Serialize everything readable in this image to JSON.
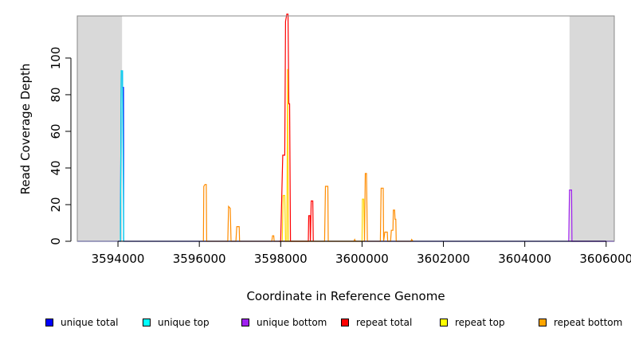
{
  "chart_data": {
    "type": "line",
    "xlabel": "Coordinate in Reference Genome",
    "ylabel": "Read Coverage Depth",
    "xlim": [
      3593000,
      3606200
    ],
    "ylim": [
      0,
      123
    ],
    "x_ticks": [
      3594000,
      3596000,
      3598000,
      3600000,
      3602000,
      3604000,
      3606000
    ],
    "y_ticks": [
      0,
      20,
      40,
      60,
      80,
      100
    ],
    "shaded_regions": [
      [
        3593000,
        3594100
      ],
      [
        3605100,
        3606200
      ]
    ],
    "series": [
      {
        "name": "unique total",
        "color": "#0000ff",
        "points": [
          [
            3593000,
            0
          ],
          [
            3594060,
            0
          ],
          [
            3594080,
            93
          ],
          [
            3594110,
            93
          ],
          [
            3594115,
            84
          ],
          [
            3594135,
            84
          ],
          [
            3594140,
            0
          ],
          [
            3606200,
            0
          ]
        ]
      },
      {
        "name": "unique top",
        "color": "#00e5ee",
        "points": [
          [
            3594060,
            0
          ],
          [
            3594080,
            93
          ],
          [
            3594110,
            93
          ],
          [
            3594140,
            0
          ]
        ]
      },
      {
        "name": "unique bottom",
        "color": "#a020f0",
        "points": [
          [
            3605080,
            0
          ],
          [
            3605100,
            28
          ],
          [
            3605150,
            28
          ],
          [
            3605160,
            0
          ],
          [
            3606200,
            0
          ]
        ]
      },
      {
        "name": "repeat total",
        "color": "#ff0000",
        "points": [
          [
            3597950,
            0
          ],
          [
            3598000,
            0
          ],
          [
            3598050,
            47
          ],
          [
            3598100,
            47
          ],
          [
            3598120,
            120
          ],
          [
            3598150,
            124
          ],
          [
            3598180,
            124
          ],
          [
            3598200,
            75
          ],
          [
            3598220,
            75
          ],
          [
            3598240,
            0
          ],
          [
            3598680,
            0
          ],
          [
            3598690,
            14
          ],
          [
            3598720,
            14
          ],
          [
            3598730,
            0
          ],
          [
            3598750,
            22
          ],
          [
            3598790,
            22
          ],
          [
            3598800,
            0
          ]
        ]
      },
      {
        "name": "repeat top",
        "color": "#ffd700",
        "points": [
          [
            3598040,
            0
          ],
          [
            3598060,
            25
          ],
          [
            3598100,
            25
          ],
          [
            3598120,
            0
          ],
          [
            3598150,
            0
          ],
          [
            3598170,
            94
          ],
          [
            3598190,
            0
          ],
          [
            3600000,
            0
          ],
          [
            3600010,
            23
          ],
          [
            3600040,
            23
          ],
          [
            3600060,
            0
          ]
        ]
      },
      {
        "name": "repeat bottom",
        "color": "#ff8c00",
        "points": [
          [
            3596100,
            0
          ],
          [
            3596110,
            30
          ],
          [
            3596140,
            31
          ],
          [
            3596170,
            31
          ],
          [
            3596180,
            0
          ],
          [
            3596700,
            0
          ],
          [
            3596720,
            19
          ],
          [
            3596760,
            18
          ],
          [
            3596780,
            0
          ],
          [
            3596900,
            0
          ],
          [
            3596920,
            8
          ],
          [
            3596980,
            8
          ],
          [
            3596990,
            0
          ],
          [
            3597780,
            0
          ],
          [
            3597800,
            3
          ],
          [
            3597830,
            3
          ],
          [
            3597840,
            0
          ],
          [
            3599080,
            0
          ],
          [
            3599100,
            30
          ],
          [
            3599160,
            30
          ],
          [
            3599170,
            0
          ],
          [
            3599800,
            0
          ],
          [
            3599820,
            1
          ],
          [
            3599840,
            0
          ],
          [
            3600060,
            0
          ],
          [
            3600080,
            37
          ],
          [
            3600110,
            37
          ],
          [
            3600130,
            0
          ],
          [
            3600450,
            0
          ],
          [
            3600470,
            29
          ],
          [
            3600520,
            29
          ],
          [
            3600530,
            0
          ],
          [
            3600560,
            5
          ],
          [
            3600620,
            5
          ],
          [
            3600630,
            0
          ],
          [
            3600700,
            0
          ],
          [
            3600720,
            6
          ],
          [
            3600760,
            6
          ],
          [
            3600770,
            17
          ],
          [
            3600800,
            17
          ],
          [
            3600810,
            12
          ],
          [
            3600830,
            12
          ],
          [
            3600840,
            0
          ],
          [
            3601200,
            0
          ],
          [
            3601220,
            1
          ],
          [
            3601250,
            0
          ]
        ]
      }
    ],
    "legend": [
      {
        "label": "unique total",
        "color": "#0000ff"
      },
      {
        "label": "unique top",
        "color": "#00ffff"
      },
      {
        "label": "unique bottom",
        "color": "#a020f0"
      },
      {
        "label": "repeat total",
        "color": "#ff0000"
      },
      {
        "label": "repeat top",
        "color": "#ffff00"
      },
      {
        "label": "repeat bottom",
        "color": "#ffa500"
      }
    ],
    "legend_placement": "bottom",
    "grid": false
  }
}
